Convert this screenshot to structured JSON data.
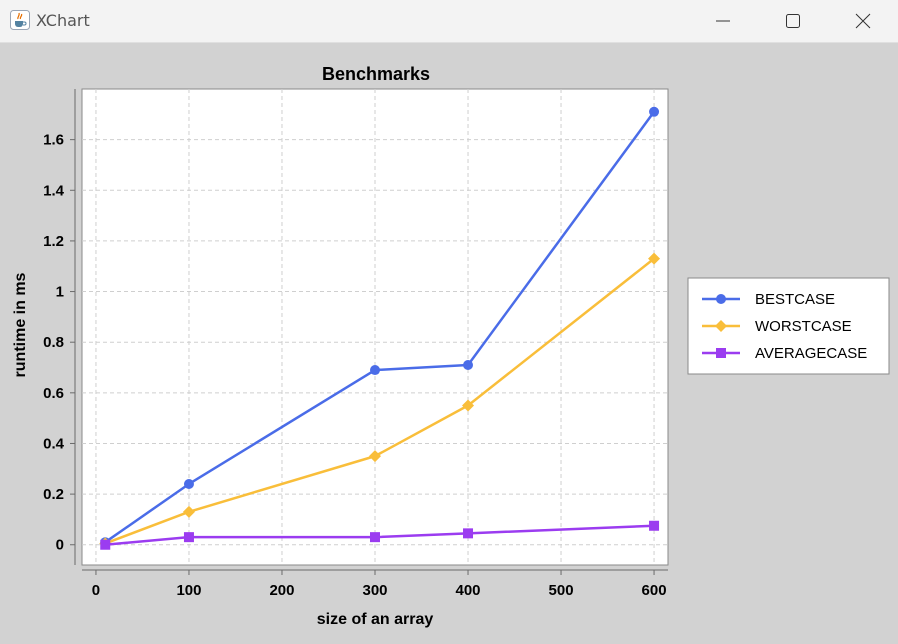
{
  "window": {
    "title": "XChart",
    "icons": {
      "app": "java-cup-icon",
      "minimize": "minimize-icon",
      "maximize": "maximize-icon",
      "close": "close-icon"
    }
  },
  "chart_data": {
    "type": "line",
    "title": "Benchmarks",
    "xlabel": "size of an array",
    "ylabel": "runtime in ms",
    "xlim": [
      -15,
      615
    ],
    "ylim": [
      -0.08,
      1.8
    ],
    "xticks": [
      0,
      100,
      200,
      300,
      400,
      500,
      600
    ],
    "xtick_labels": [
      "0",
      "100",
      "200",
      "300",
      "400",
      "500",
      "600"
    ],
    "yticks": [
      0,
      0.2,
      0.4,
      0.6,
      0.8,
      1.0,
      1.2,
      1.4,
      1.6
    ],
    "ytick_labels": [
      "0",
      "0.2",
      "0.4",
      "0.6",
      "0.8",
      "1",
      "1.2",
      "1.4",
      "1.6"
    ],
    "grid": true,
    "legend_position": "outside-right",
    "series": [
      {
        "name": "BESTCASE",
        "color": "#4a6ce8",
        "marker": "circle",
        "x": [
          10,
          100,
          300,
          400,
          600
        ],
        "y": [
          0.01,
          0.24,
          0.69,
          0.71,
          1.71
        ]
      },
      {
        "name": "WORSTCASE",
        "color": "#f9be3a",
        "marker": "diamond",
        "x": [
          10,
          100,
          300,
          400,
          600
        ],
        "y": [
          0.005,
          0.13,
          0.35,
          0.55,
          1.13
        ]
      },
      {
        "name": "AVERAGECASE",
        "color": "#9b3cf0",
        "marker": "square",
        "x": [
          10,
          100,
          300,
          400,
          600
        ],
        "y": [
          0.0,
          0.03,
          0.03,
          0.045,
          0.075
        ]
      }
    ]
  }
}
